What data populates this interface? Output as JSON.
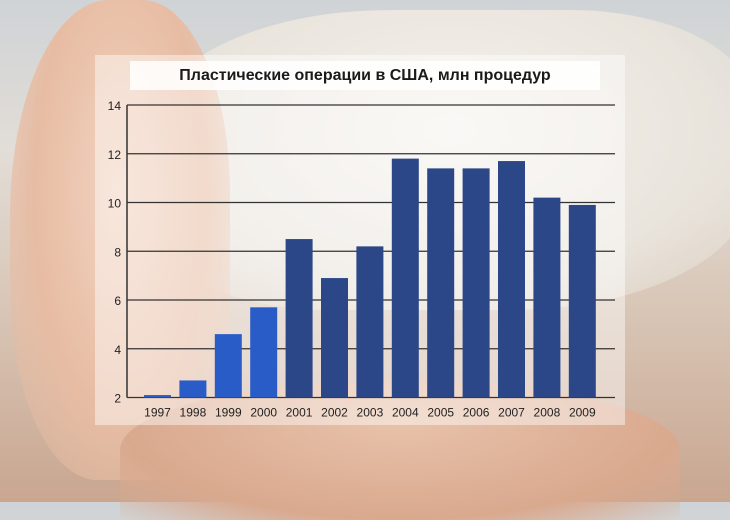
{
  "chart_data": {
    "type": "bar",
    "title": "Пластические операции в США, млн процедур",
    "categories": [
      "1997",
      "1998",
      "1999",
      "2000",
      "2001",
      "2002",
      "2003",
      "2004",
      "2005",
      "2006",
      "2007",
      "2008",
      "2009"
    ],
    "values": [
      2.1,
      2.7,
      4.6,
      5.7,
      8.5,
      6.9,
      8.2,
      11.8,
      11.4,
      11.4,
      11.7,
      10.2,
      9.9
    ],
    "ylim": [
      2,
      14
    ],
    "yticks": [
      2,
      4,
      6,
      8,
      10,
      12,
      14
    ],
    "grid": true,
    "xlabel": "",
    "ylabel": "",
    "colors": {
      "early": "#2a5cc8",
      "late": "#2b4787",
      "grid": "#333333"
    }
  }
}
